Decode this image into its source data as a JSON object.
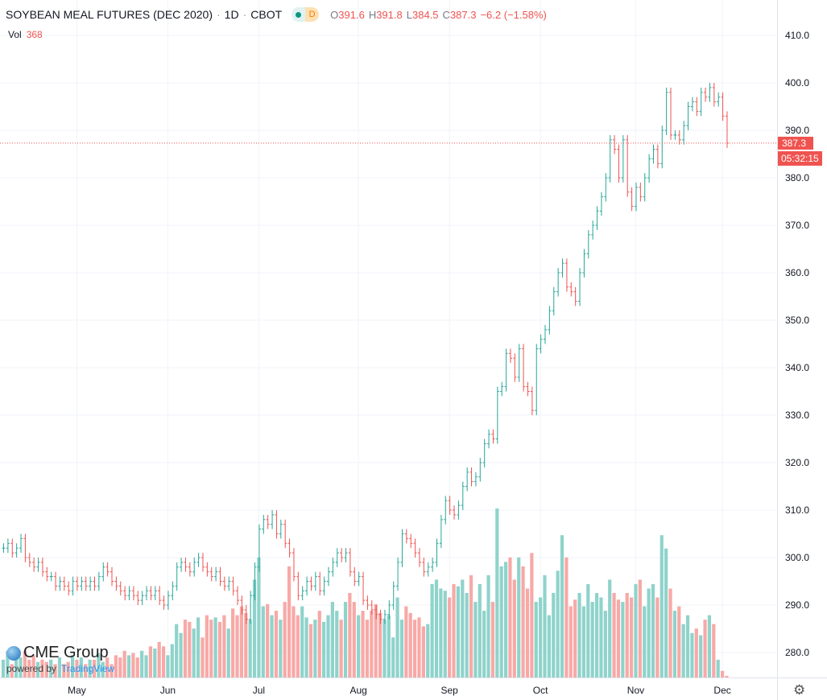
{
  "header": {
    "title": "SOYBEAN MEAL FUTURES (DEC 2020)",
    "interval": "1D",
    "exchange": "CBOT",
    "sep": "·",
    "badge": "D",
    "o_label": "O",
    "o": "391.6",
    "h_label": "H",
    "h": "391.8",
    "l_label": "L",
    "l": "384.5",
    "c_label": "C",
    "c": "387.3",
    "change": "−6.2 (−1.58%)"
  },
  "volume_legend": {
    "label": "Vol",
    "value": "368"
  },
  "logo": {
    "brand": "CME Group",
    "powered": "powered by",
    "tv": "TradingView"
  },
  "colors": {
    "up": "#26a69a",
    "down": "#ef5350",
    "vol_up": "#8fd3cb",
    "vol_down": "#f7a9a7",
    "grid": "#f0f3fa"
  },
  "chart_data": {
    "type": "ohlc",
    "title": "SOYBEAN MEAL FUTURES (DEC 2020)",
    "ylim": [
      275,
      412
    ],
    "yticks": [
      280,
      290,
      300,
      310,
      320,
      330,
      340,
      350,
      360,
      370,
      380,
      390,
      400,
      410
    ],
    "ytick_labels": [
      "280.0",
      "290.0",
      "300.0",
      "310.0",
      "320.0",
      "330.0",
      "340.0",
      "350.0",
      "360.0",
      "370.0",
      "380.0",
      "390.0",
      "400.0",
      "410.0"
    ],
    "last_price": "387.3",
    "last_price_value": 387.3,
    "countdown": "05:32:15",
    "months": [
      {
        "label": "May",
        "index": 17
      },
      {
        "label": "Jun",
        "index": 38
      },
      {
        "label": "Jul",
        "index": 59
      },
      {
        "label": "Aug",
        "index": 82
      },
      {
        "label": "Sep",
        "index": 103
      },
      {
        "label": "Oct",
        "index": 124
      },
      {
        "label": "Nov",
        "index": 146
      },
      {
        "label": "Dec",
        "index": 166
      }
    ],
    "close": [
      302,
      303,
      301,
      302,
      304,
      300,
      299,
      298,
      299,
      297,
      296,
      296,
      294,
      295,
      294,
      293,
      295,
      294,
      295,
      294,
      295,
      294,
      296,
      298,
      297,
      295,
      294,
      293,
      292,
      293,
      292,
      291,
      292,
      293,
      292,
      293,
      291,
      290,
      292,
      294,
      298,
      299,
      298,
      297,
      299,
      300,
      298,
      297,
      296,
      297,
      295,
      294,
      295,
      293,
      291,
      289,
      287,
      292,
      298,
      306,
      308,
      307,
      309,
      305,
      307,
      303,
      301,
      296,
      292,
      293,
      295,
      294,
      296,
      293,
      295,
      297,
      299,
      301,
      300,
      301,
      297,
      295,
      296,
      291,
      290,
      289,
      288,
      287,
      288,
      290,
      294,
      299,
      305,
      304,
      303,
      301,
      299,
      297,
      298,
      299,
      303,
      308,
      312,
      310,
      309,
      311,
      315,
      318,
      316,
      317,
      320,
      324,
      326,
      325,
      335,
      336,
      343,
      342,
      338,
      344,
      336,
      335,
      331,
      344,
      346,
      348,
      352,
      356,
      360,
      362,
      357,
      356,
      354,
      360,
      364,
      368,
      370,
      373,
      376,
      380,
      388,
      386,
      380,
      388,
      377,
      374,
      378,
      376,
      380,
      384,
      386,
      383,
      390,
      398,
      389,
      389,
      388,
      391,
      395,
      396,
      394,
      398,
      397,
      399,
      396,
      397,
      393,
      387.3
    ],
    "volume": [
      4000,
      6000,
      3000,
      5000,
      4500,
      6000,
      4000,
      5000,
      3500,
      4000,
      3500,
      4000,
      3000,
      4500,
      3000,
      3500,
      5000,
      4000,
      4500,
      3000,
      4000,
      4000,
      5500,
      3500,
      4500,
      3000,
      5000,
      4500,
      6000,
      5000,
      5500,
      4500,
      6000,
      5000,
      7000,
      6500,
      8000,
      7000,
      5000,
      7500,
      12000,
      10000,
      13000,
      12500,
      11000,
      13500,
      9000,
      14000,
      13000,
      13500,
      12500,
      14000,
      11000,
      15500,
      14000,
      16000,
      14500,
      13000,
      22000,
      27000,
      16000,
      16500,
      14000,
      15000,
      13000,
      17000,
      25000,
      16000,
      14000,
      16000,
      13500,
      12000,
      13000,
      15000,
      12500,
      14000,
      17000,
      15000,
      13000,
      17000,
      19000,
      17000,
      14000,
      15000,
      13000,
      15000,
      16500,
      14500,
      13000,
      14000,
      9000,
      18000,
      13000,
      16000,
      14500,
      13000,
      13500,
      11500,
      12000,
      21000,
      22000,
      20000,
      19500,
      18000,
      21000,
      20500,
      22000,
      19000,
      23000,
      17000,
      21000,
      15000,
      23000,
      17000,
      38000,
      25000,
      26000,
      27000,
      22000,
      27000,
      25000,
      20000,
      28000,
      17000,
      18000,
      23000,
      14000,
      19000,
      24000,
      32000,
      27000,
      16000,
      17500,
      19000,
      16000,
      21000,
      17000,
      19000,
      18000,
      15000,
      22000,
      19000,
      17500,
      17000,
      19000,
      18000,
      21000,
      22000,
      16000,
      20000,
      21000,
      18000,
      32000,
      29000,
      20000,
      15000,
      16000,
      12000,
      14000,
      10000,
      11000,
      9500,
      13000,
      14000,
      12000,
      4000,
      1500,
      368
    ],
    "volume_max": 38000
  }
}
